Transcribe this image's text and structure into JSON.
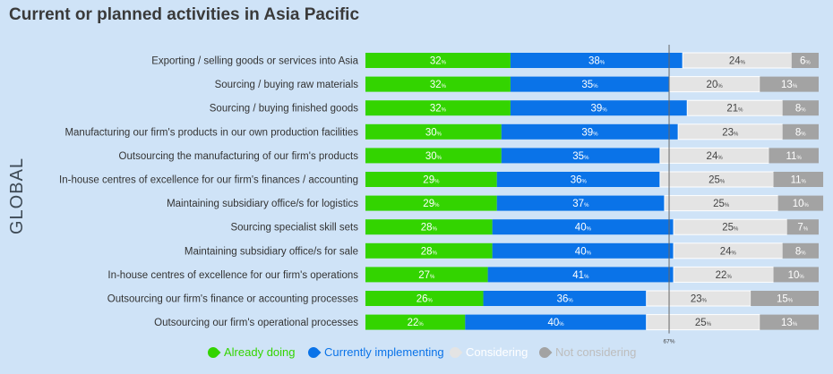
{
  "title": "Current or planned activities in Asia Pacific",
  "side_label": "GLOBAL",
  "colors": {
    "already_doing": "#33d400",
    "currently_implementing": "#0a73e8",
    "considering": "#e4e4e4",
    "not_considering": "#a3a3a3",
    "background": "#cfe3f7"
  },
  "chart_data": {
    "type": "bar",
    "orientation": "horizontal-stacked",
    "categories": [
      "Exporting / selling goods or services into Asia",
      "Sourcing / buying raw materials",
      "Sourcing / buying finished goods",
      "Manufacturing our firm's products in our own production facilities",
      "Outsourcing the manufacturing of our firm's products",
      "In-house centres of excellence for our firm's finances / accounting",
      "Maintaining subsidiary office/s for logistics",
      "Sourcing specialist skill sets",
      "Maintaining subsidiary office/s for sale",
      "In-house centres of excellence for our firm's operations",
      "Outsourcing our firm's finance or accounting processes",
      "Outsourcing our firm's operational processes"
    ],
    "series": [
      {
        "name": "Already doing",
        "values": [
          32,
          32,
          32,
          30,
          30,
          29,
          29,
          28,
          28,
          27,
          26,
          22
        ]
      },
      {
        "name": "Currently implementing",
        "values": [
          38,
          35,
          39,
          39,
          35,
          36,
          37,
          40,
          40,
          41,
          36,
          40
        ]
      },
      {
        "name": "Considering",
        "values": [
          24,
          20,
          21,
          23,
          24,
          25,
          25,
          25,
          24,
          22,
          23,
          25
        ]
      },
      {
        "name": "Not considering",
        "values": [
          6,
          13,
          8,
          8,
          11,
          11,
          10,
          7,
          8,
          10,
          15,
          13
        ]
      }
    ],
    "value_suffix": "%",
    "reference_line": {
      "value": 67,
      "label": "67%"
    },
    "legend_position": "bottom"
  }
}
